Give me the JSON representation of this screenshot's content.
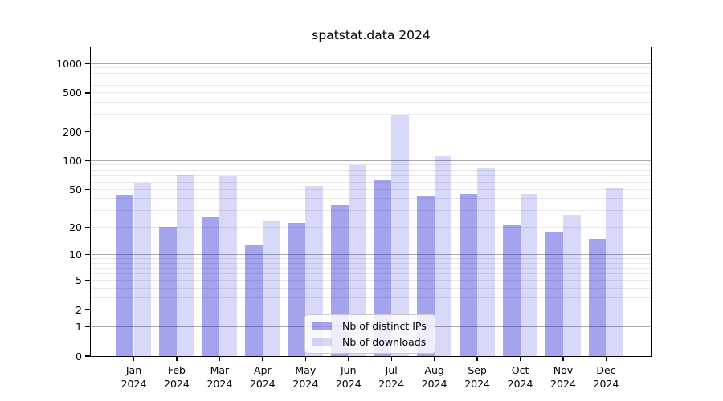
{
  "chart_data": {
    "type": "bar",
    "title": "spatstat.data 2024",
    "categories": [
      "Jan",
      "Feb",
      "Mar",
      "Apr",
      "May",
      "Jun",
      "Jul",
      "Aug",
      "Sep",
      "Oct",
      "Nov",
      "Dec"
    ],
    "category_year": "2024",
    "series": [
      {
        "name": "Nb of distinct IPs",
        "base_color": "#0f0fd2",
        "alpha": 0.38,
        "approx_hex": "#a4a4ee",
        "values": [
          44,
          20,
          26,
          13,
          22,
          35,
          62,
          42,
          45,
          21,
          18,
          15
        ]
      },
      {
        "name": "Nb of downloads",
        "base_color": "#0f0fd2",
        "alpha": 0.16,
        "approx_hex": "#d9d9f8",
        "values": [
          59,
          71,
          69,
          23,
          54,
          90,
          300,
          110,
          85,
          45,
          27,
          52
        ]
      }
    ],
    "y_scale": "log1p",
    "y_ticks": [
      0,
      1,
      2,
      5,
      10,
      20,
      50,
      100,
      200,
      500,
      1000
    ],
    "ylim": [
      0,
      1470
    ],
    "xlabel": "",
    "ylabel": "",
    "grid": {
      "majors": [
        1,
        10,
        100,
        1000
      ],
      "minors_per_decade": [
        2,
        3,
        4,
        5,
        6,
        7,
        8,
        9
      ],
      "major_color": "#ababab",
      "minor_color": "#e7e7e7"
    },
    "legend_position": "bottom-center-inside"
  }
}
